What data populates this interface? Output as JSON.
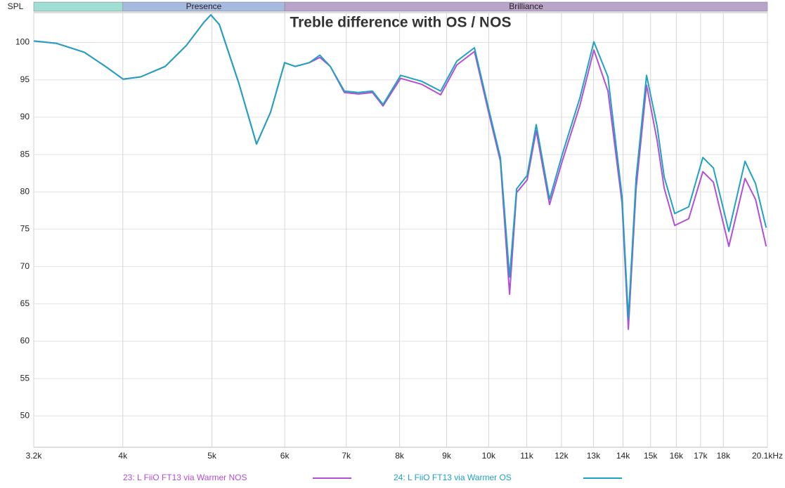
{
  "chart_data": {
    "type": "line",
    "title": "Treble difference with OS / NOS",
    "y_label": "SPL",
    "xscale": "log",
    "grid": true,
    "bands": [
      {
        "from": 3200,
        "to": 4000,
        "color": "#9fdfd3"
      },
      {
        "label": "Presence",
        "from": 4000,
        "to": 6000,
        "color": "#a6badf"
      },
      {
        "label": "Brilliance",
        "from": 6000,
        "to": 20100,
        "color": "#b9a3c9"
      }
    ],
    "x": [
      3200,
      3385,
      3632,
      3829,
      4002,
      4182,
      4448,
      4689,
      4900,
      4986,
      5094,
      5350,
      5591,
      5792,
      5999,
      6159,
      6380,
      6551,
      6726,
      6967,
      7217,
      7475,
      7675,
      8021,
      8456,
      8867,
      9233,
      9649,
      9995,
      10298,
      10537,
      10724,
      11011,
      11265,
      11648,
      12023,
      12567,
      13014,
      13482,
      13966,
      14188,
      14465,
      14850,
      15247,
      15520,
      15935,
      16505,
      17098,
      17554,
      18250,
      19001,
      19510,
      20035
    ],
    "series": [
      {
        "name": "23: L FiiO FT13 via Warmer NOS",
        "color": "#b24fd6",
        "values": [
          100.2,
          99.9,
          98.7,
          96.8,
          95.1,
          95.4,
          96.8,
          99.6,
          102.7,
          103.7,
          102.4,
          94.5,
          86.4,
          90.7,
          97.3,
          96.8,
          97.3,
          98.0,
          96.8,
          93.3,
          93.1,
          93.3,
          91.5,
          95.2,
          94.4,
          93.0,
          97.0,
          98.8,
          90.7,
          84.1,
          66.3,
          79.9,
          81.6,
          88.2,
          78.3,
          84.1,
          91.6,
          99.0,
          93.5,
          78.5,
          61.6,
          80.4,
          94.3,
          86.9,
          80.5,
          75.5,
          76.4,
          82.7,
          81.3,
          72.7,
          81.8,
          79.0,
          72.7
        ]
      },
      {
        "name": "24: L FiiO FT13 via Warmer OS",
        "color": "#1ea2c2",
        "values": [
          100.2,
          99.9,
          98.7,
          96.8,
          95.1,
          95.4,
          96.8,
          99.6,
          102.7,
          103.7,
          102.4,
          94.5,
          86.4,
          90.7,
          97.3,
          96.8,
          97.3,
          98.3,
          96.8,
          93.5,
          93.3,
          93.5,
          91.7,
          95.6,
          94.8,
          93.5,
          97.5,
          99.3,
          91.2,
          84.6,
          68.6,
          80.4,
          82.2,
          89.0,
          79.0,
          85.0,
          92.6,
          100.1,
          95.4,
          79.4,
          63.0,
          81.8,
          95.6,
          88.8,
          82.0,
          77.1,
          78.0,
          84.6,
          83.2,
          74.7,
          84.1,
          81.1,
          75.2
        ]
      }
    ],
    "xlim": [
      3200,
      20100
    ],
    "ylim": [
      45.8,
      104
    ],
    "xticks": [
      {
        "value": 3200,
        "label": "3.2k"
      },
      {
        "value": 4000,
        "label": "4k"
      },
      {
        "value": 5000,
        "label": "5k"
      },
      {
        "value": 6000,
        "label": "6k"
      },
      {
        "value": 7000,
        "label": "7k"
      },
      {
        "value": 8000,
        "label": "8k"
      },
      {
        "value": 9000,
        "label": "9k"
      },
      {
        "value": 10000,
        "label": "10k"
      },
      {
        "value": 11000,
        "label": "11k"
      },
      {
        "value": 12000,
        "label": "12k"
      },
      {
        "value": 13000,
        "label": "13k"
      },
      {
        "value": 14000,
        "label": "14k"
      },
      {
        "value": 15000,
        "label": "15k"
      },
      {
        "value": 16000,
        "label": "16k"
      },
      {
        "value": 17000,
        "label": "17k"
      },
      {
        "value": 18000,
        "label": "18k"
      },
      {
        "value": 20100,
        "label": "20.1kHz"
      }
    ],
    "yticks": [
      50,
      55,
      60,
      65,
      70,
      75,
      80,
      85,
      90,
      95,
      100
    ]
  }
}
